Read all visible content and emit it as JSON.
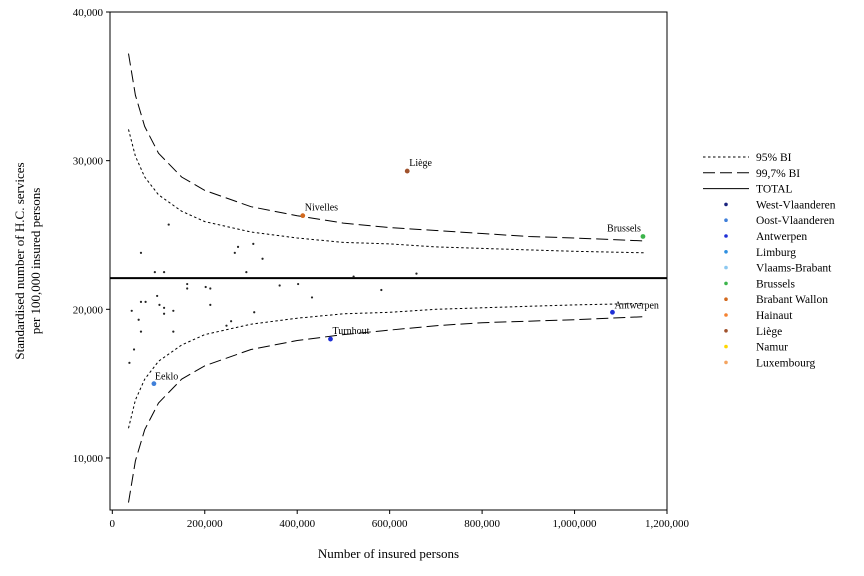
{
  "chart_data": {
    "type": "scatter",
    "xlabel": "Number of insured persons",
    "ylabel": [
      "Standardised number of H.C. services",
      "per 100,000 insured persons"
    ],
    "xlim": [
      -5000,
      1200000
    ],
    "ylim": [
      6500,
      40000
    ],
    "x_ticks": [
      0,
      200000,
      400000,
      600000,
      800000,
      1000000,
      1200000
    ],
    "x_tick_labels": [
      "0",
      "200,000",
      "400,000",
      "600,000",
      "800,000",
      "1,000,000",
      "1,200,000"
    ],
    "y_ticks": [
      10000,
      20000,
      30000,
      40000
    ],
    "y_tick_labels": [
      "10,000",
      "20,000",
      "30,000",
      "40,000"
    ],
    "total_rate": 22100,
    "legend_placement": "right",
    "legend": [
      {
        "label": "95% BI",
        "kind": "dotted"
      },
      {
        "label": "99,7% BI",
        "kind": "dashed"
      },
      {
        "label": "TOTAL",
        "kind": "solid"
      },
      {
        "label": "West-Vlaanderen",
        "kind": "point",
        "color": "#1a237e"
      },
      {
        "label": "Oost-Vlaanderen",
        "kind": "point",
        "color": "#3f7fd9"
      },
      {
        "label": "Antwerpen",
        "kind": "point",
        "color": "#1f2fd6"
      },
      {
        "label": "Limburg",
        "kind": "point",
        "color": "#2e8fe0"
      },
      {
        "label": "Vlaams-Brabant",
        "kind": "point",
        "color": "#8cc8f0"
      },
      {
        "label": "Brussels",
        "kind": "point",
        "color": "#3cb44b"
      },
      {
        "label": "Brabant Wallon",
        "kind": "point",
        "color": "#d2691e"
      },
      {
        "label": "Hainaut",
        "kind": "point",
        "color": "#f58231"
      },
      {
        "label": "Liège",
        "kind": "point",
        "color": "#a0522d"
      },
      {
        "label": "Namur",
        "kind": "point",
        "color": "#ffd700"
      },
      {
        "label": "Luxembourg",
        "kind": "point",
        "color": "#f4a460"
      }
    ],
    "bounds": [
      {
        "name": "95% BI",
        "kind": "dotted",
        "x": [
          35000,
          50000,
          70000,
          100000,
          150000,
          200000,
          300000,
          400000,
          500000,
          600000,
          700000,
          800000,
          900000,
          1000000,
          1150000
        ],
        "upper": [
          32100,
          30300,
          28900,
          27700,
          26600,
          25900,
          25200,
          24800,
          24500,
          24400,
          24200,
          24100,
          24000,
          23900,
          23800
        ],
        "lower": [
          12000,
          13900,
          15300,
          16500,
          17600,
          18300,
          19000,
          19400,
          19700,
          19800,
          20000,
          20100,
          20200,
          20300,
          20400
        ]
      },
      {
        "name": "99,7% BI",
        "kind": "dashed",
        "x": [
          35000,
          50000,
          70000,
          100000,
          150000,
          200000,
          300000,
          400000,
          500000,
          600000,
          700000,
          800000,
          900000,
          1000000,
          1150000
        ],
        "upper": [
          37200,
          34400,
          32300,
          30500,
          28900,
          28000,
          26900,
          26300,
          25800,
          25500,
          25300,
          25100,
          24900,
          24800,
          24600
        ],
        "lower": [
          7000,
          9800,
          11900,
          13700,
          15300,
          16200,
          17300,
          17900,
          18300,
          18600,
          18900,
          19100,
          19200,
          19300,
          19500
        ]
      }
    ],
    "labeled_points": [
      {
        "label": "Liège",
        "x": 638000,
        "y": 29300,
        "color": "#a0522d"
      },
      {
        "label": "Nivelles",
        "x": 412000,
        "y": 26300,
        "color": "#d2691e"
      },
      {
        "label": "Brussels",
        "x": 1148000,
        "y": 24900,
        "color": "#3cb44b"
      },
      {
        "label": "Antwerpen",
        "x": 1082000,
        "y": 19800,
        "color": "#1f2fd6"
      },
      {
        "label": "Turnhout",
        "x": 472000,
        "y": 18000,
        "color": "#1f2fd6"
      },
      {
        "label": "Eeklo",
        "x": 90000,
        "y": 15000,
        "color": "#3f7fd9"
      }
    ],
    "points": [
      {
        "x": 62000,
        "y": 23800
      },
      {
        "x": 122000,
        "y": 25700
      },
      {
        "x": 92000,
        "y": 22500
      },
      {
        "x": 112000,
        "y": 22500
      },
      {
        "x": 272000,
        "y": 24200
      },
      {
        "x": 265000,
        "y": 23800
      },
      {
        "x": 305000,
        "y": 24400
      },
      {
        "x": 290000,
        "y": 22500
      },
      {
        "x": 325000,
        "y": 23400
      },
      {
        "x": 658000,
        "y": 22400
      },
      {
        "x": 522000,
        "y": 22200
      },
      {
        "x": 162000,
        "y": 21700
      },
      {
        "x": 162000,
        "y": 21400
      },
      {
        "x": 202000,
        "y": 21500
      },
      {
        "x": 212000,
        "y": 21400
      },
      {
        "x": 362000,
        "y": 21600
      },
      {
        "x": 402000,
        "y": 21700
      },
      {
        "x": 582000,
        "y": 21300
      },
      {
        "x": 97000,
        "y": 20900
      },
      {
        "x": 432000,
        "y": 20800
      },
      {
        "x": 62000,
        "y": 20500
      },
      {
        "x": 72000,
        "y": 20500
      },
      {
        "x": 102000,
        "y": 20300
      },
      {
        "x": 112000,
        "y": 20100
      },
      {
        "x": 212000,
        "y": 20300
      },
      {
        "x": 42000,
        "y": 19900
      },
      {
        "x": 112000,
        "y": 19700
      },
      {
        "x": 132000,
        "y": 19900
      },
      {
        "x": 57000,
        "y": 19300
      },
      {
        "x": 247000,
        "y": 18900
      },
      {
        "x": 257000,
        "y": 19200
      },
      {
        "x": 307000,
        "y": 19800
      },
      {
        "x": 62000,
        "y": 18500
      },
      {
        "x": 132000,
        "y": 18500
      },
      {
        "x": 47000,
        "y": 17300
      },
      {
        "x": 37000,
        "y": 16400
      }
    ]
  }
}
